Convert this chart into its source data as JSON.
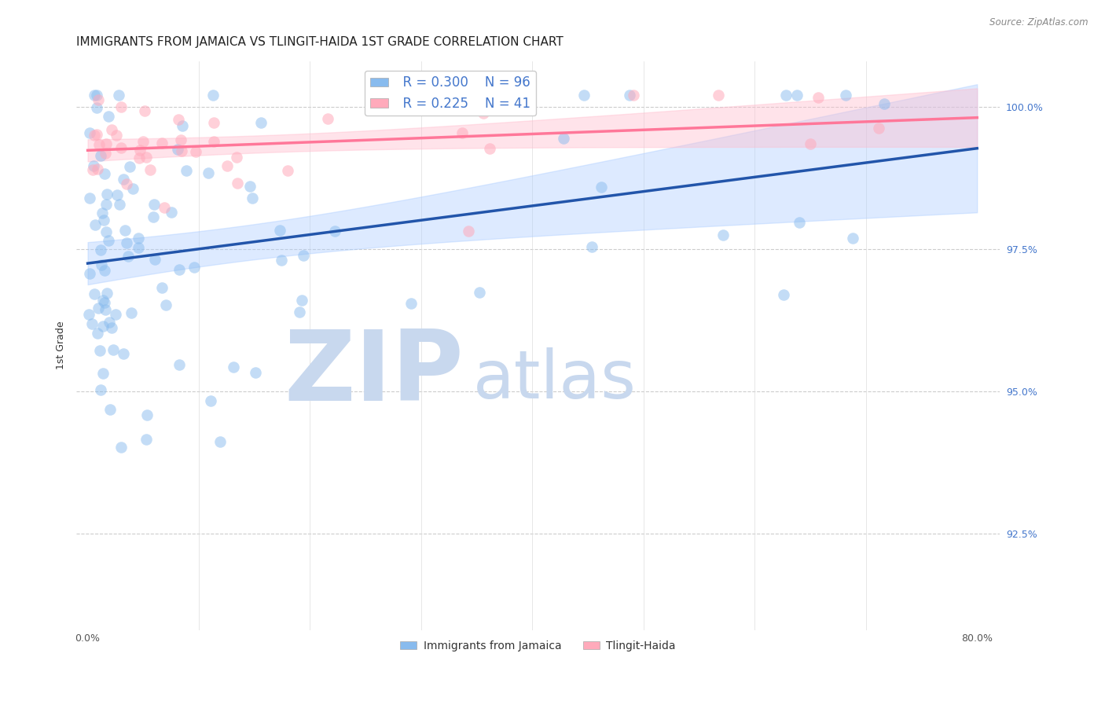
{
  "title": "IMMIGRANTS FROM JAMAICA VS TLINGIT-HAIDA 1ST GRADE CORRELATION CHART",
  "source_text": "Source: ZipAtlas.com",
  "xlabel_blue": "Immigrants from Jamaica",
  "xlabel_pink": "Tlingit-Haida",
  "ylabel": "1st Grade",
  "xlim": [
    -0.01,
    0.82
  ],
  "ylim": [
    0.908,
    1.008
  ],
  "yticks": [
    0.925,
    0.95,
    0.975,
    1.0
  ],
  "yticklabels": [
    "92.5%",
    "95.0%",
    "97.5%",
    "100.0%"
  ],
  "R_blue": 0.3,
  "N_blue": 96,
  "R_pink": 0.225,
  "N_pink": 41,
  "blue_color": "#88BBEE",
  "pink_color": "#FFAABB",
  "blue_line_color": "#2255AA",
  "pink_line_color": "#FF7799",
  "blue_ci_color": "#AACCFF",
  "pink_ci_color": "#FFBBCC",
  "watermark_zip": "ZIP",
  "watermark_atlas": "atlas",
  "watermark_color": "#C8D8EE",
  "title_fontsize": 11,
  "label_fontsize": 9,
  "tick_fontsize": 9,
  "legend_fontsize": 12
}
